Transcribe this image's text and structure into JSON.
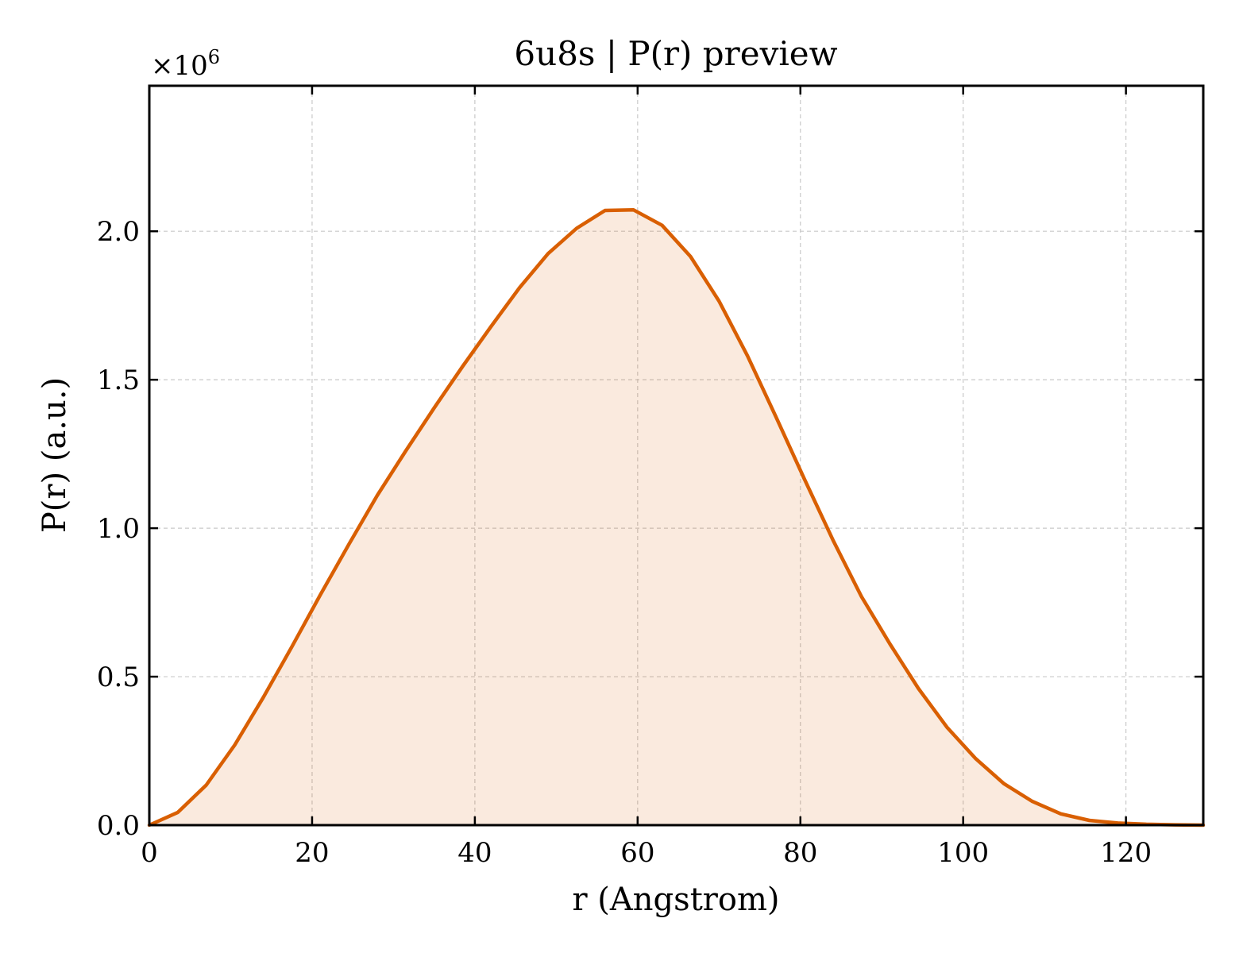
{
  "chart_data": {
    "type": "area",
    "title": "6u8s | P(r) preview",
    "xlabel": "r (Angstrom)",
    "ylabel": "P(r) (a.u.)",
    "y_offset_label": {
      "base": "×10",
      "exponent": "6"
    },
    "xlim": [
      0,
      129.5
    ],
    "ylim": [
      0,
      2.49
    ],
    "x_ticks": [
      0,
      20,
      40,
      60,
      80,
      100,
      120
    ],
    "x_tick_labels": [
      "0",
      "20",
      "40",
      "60",
      "80",
      "100",
      "120"
    ],
    "y_ticks": [
      0,
      0.5,
      1.0,
      1.5,
      2.0
    ],
    "y_tick_labels": [
      "0.0",
      "0.5",
      "1.0",
      "1.5",
      "2.0"
    ],
    "grid": true,
    "legend": "none",
    "series": [
      {
        "x": [
          0,
          3.5,
          7.0,
          10.5,
          14.0,
          17.5,
          21.0,
          24.5,
          28.0,
          31.5,
          35.0,
          38.5,
          42.0,
          45.5,
          49.0,
          52.5,
          56.0,
          59.5,
          63.0,
          66.5,
          70.0,
          73.5,
          77.0,
          80.5,
          84.0,
          87.5,
          91.0,
          94.5,
          98.0,
          101.5,
          105.0,
          108.5,
          112.0,
          115.5,
          119.0,
          122.5,
          126.0,
          129.5
        ],
        "y": [
          0.0,
          0.043,
          0.135,
          0.27,
          0.43,
          0.6,
          0.775,
          0.945,
          1.11,
          1.26,
          1.405,
          1.545,
          1.68,
          1.81,
          1.925,
          2.01,
          2.07,
          2.072,
          2.02,
          1.915,
          1.765,
          1.58,
          1.375,
          1.165,
          0.96,
          0.77,
          0.61,
          0.46,
          0.33,
          0.225,
          0.14,
          0.08,
          0.038,
          0.016,
          0.007,
          0.003,
          0.001,
          0.0
        ],
        "line_color": "#d95f02",
        "fill_color": "#d95f02",
        "fill_opacity": 0.13
      }
    ]
  }
}
